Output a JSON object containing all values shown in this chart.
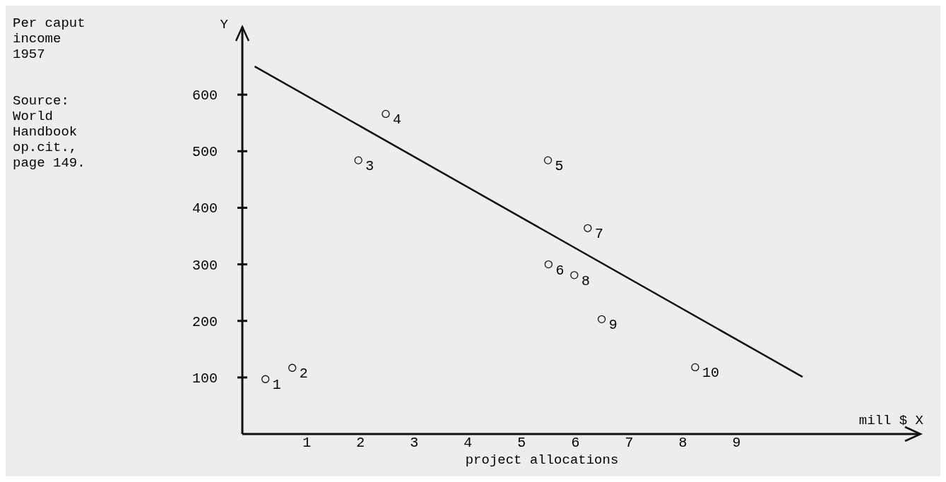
{
  "chart_data": {
    "type": "scatter",
    "xlabel": "project allocations",
    "x": [
      0.23,
      0.73,
      1.96,
      2.47,
      5.49,
      5.5,
      6.23,
      5.98,
      6.49,
      8.23
    ],
    "series": [
      {
        "color": "#111111",
        "values": [
          97,
          117,
          484,
          566,
          484,
          300,
          364,
          281,
          203,
          118
        ]
      },
      {
        "type": "line",
        "color": "#111111",
        "marker": "none",
        "x": [
          0.03,
          10.23
        ],
        "values": [
          650,
          101
        ]
      }
    ],
    "xlim": [
      -0.2,
      12.4
    ],
    "ylim": [
      0,
      720
    ],
    "xticks": [
      1,
      2,
      3,
      4,
      5,
      6,
      7,
      8,
      9
    ],
    "yticks": [
      100,
      200,
      300,
      400,
      500,
      600
    ],
    "marker": "circle",
    "grid": false,
    "annotations": [
      "Source: World Handbook op.cit., page 149.",
      "mill $ X",
      "Y",
      "Per caput income 1957",
      {
        "text": "1",
        "x": 0.23,
        "y": 97
      },
      {
        "text": "2",
        "x": 0.73,
        "y": 117
      },
      {
        "text": "3",
        "x": 1.96,
        "y": 484
      },
      {
        "text": "4",
        "x": 2.47,
        "y": 566
      },
      {
        "text": "5",
        "x": 5.49,
        "y": 484
      },
      {
        "text": "6",
        "x": 5.5,
        "y": 300
      },
      {
        "text": "7",
        "x": 6.23,
        "y": 364
      },
      {
        "text": "8",
        "x": 5.98,
        "y": 281
      },
      {
        "text": "9",
        "x": 6.49,
        "y": 203
      },
      {
        "text": "10",
        "x": 8.23,
        "y": 118
      }
    ]
  }
}
